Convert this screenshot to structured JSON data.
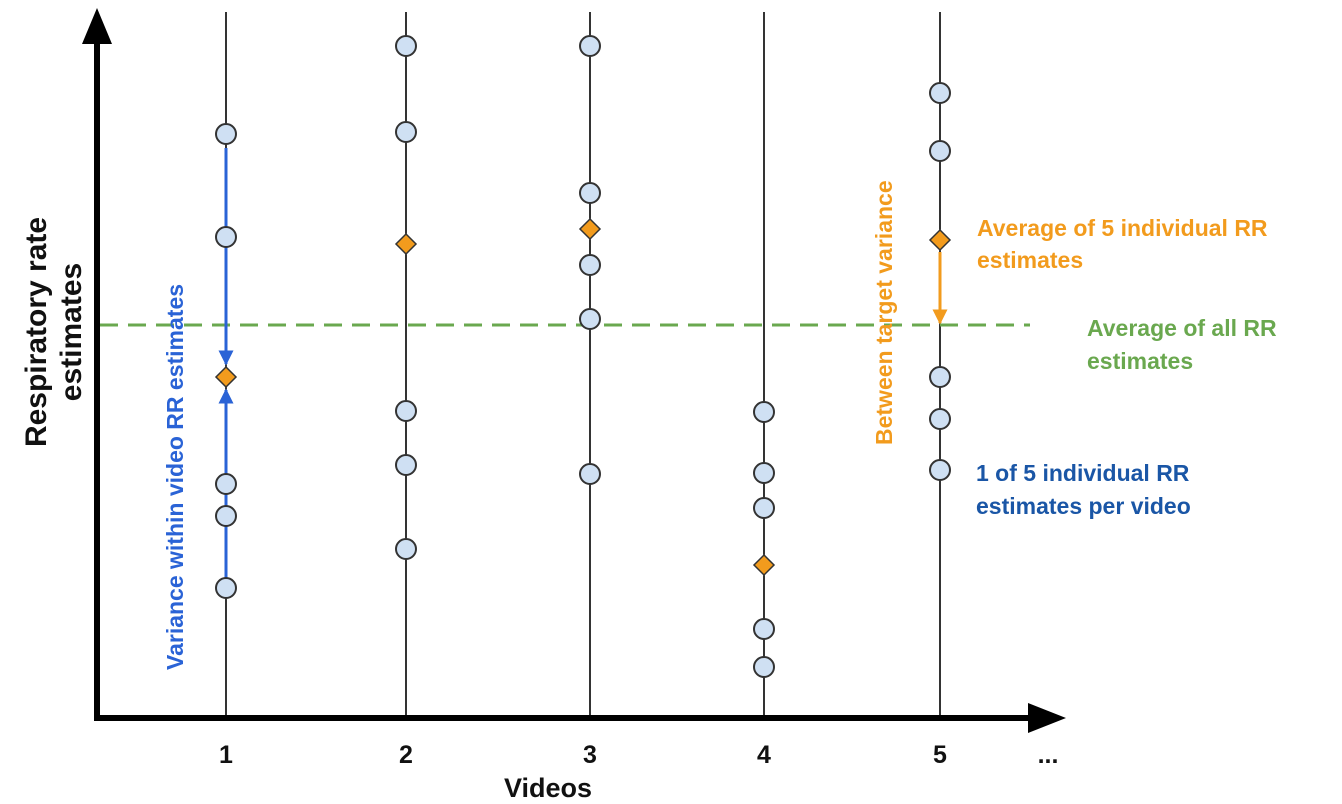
{
  "axes": {
    "y_label_line1": "Respiratory rate",
    "y_label_line2": "estimates",
    "x_label": "Videos",
    "x_ticks": [
      "1",
      "2",
      "3",
      "4",
      "5"
    ],
    "x_more": "..."
  },
  "annotations": {
    "avg_individual_line1": "Average of 5 individual RR",
    "avg_individual_line2": "estimates",
    "avg_all_line1": "Average of all RR",
    "avg_all_line2": "estimates",
    "individual_line1": "1 of 5 individual RR",
    "individual_line2": "estimates per video",
    "within_variance": "Variance within video RR estimates",
    "between_variance": "Between target variance"
  },
  "colors": {
    "axis": "#000000",
    "estimate_fill": "#cfe0f3",
    "estimate_stroke": "#333333",
    "average_fill": "#f29b1d",
    "overall_average_line": "#6aa84f",
    "within_arrow": "#2a63d6",
    "between_arrow": "#f29b1d"
  }
}
